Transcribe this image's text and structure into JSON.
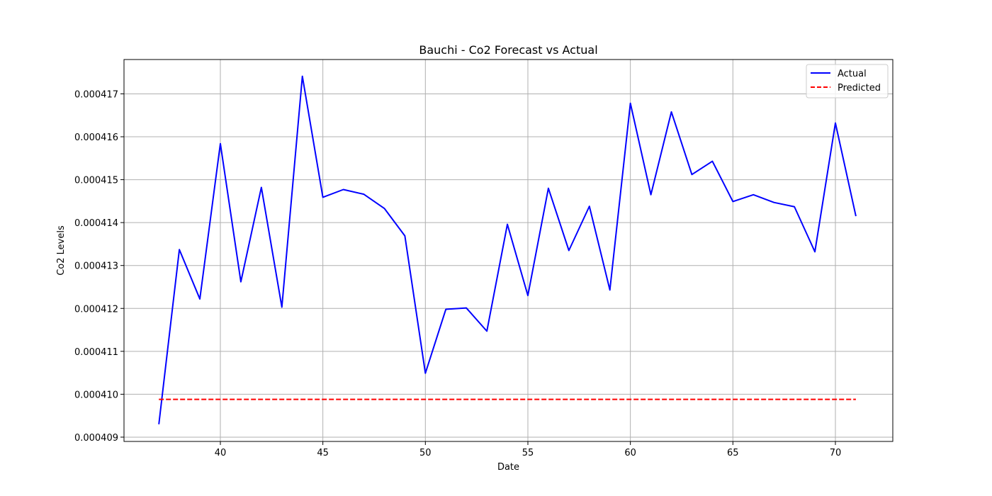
{
  "chart_data": {
    "type": "line",
    "title": "Bauchi - Co2 Forecast vs Actual",
    "xlabel": "Date",
    "ylabel": "Co2 Levels",
    "xlim": [
      35.3,
      72.8
    ],
    "ylim": [
      0.0004089,
      0.0004178
    ],
    "x_ticks": [
      40,
      45,
      50,
      55,
      60,
      65,
      70
    ],
    "x_tick_labels": [
      "40",
      "45",
      "50",
      "55",
      "60",
      "65",
      "70"
    ],
    "y_ticks": [
      0.000409,
      0.00041,
      0.000411,
      0.000412,
      0.000413,
      0.000414,
      0.000415,
      0.000416,
      0.000417
    ],
    "y_tick_labels": [
      "0.000409",
      "0.000410",
      "0.000411",
      "0.000412",
      "0.000413",
      "0.000414",
      "0.000415",
      "0.000416",
      "0.000417"
    ],
    "grid": true,
    "legend_position": "top-right",
    "x": [
      37,
      38,
      39,
      40,
      41,
      42,
      43,
      44,
      45,
      46,
      47,
      48,
      49,
      50,
      51,
      52,
      53,
      54,
      55,
      56,
      57,
      58,
      59,
      60,
      61,
      62,
      63,
      64,
      65,
      66,
      67,
      68,
      69,
      70,
      71
    ],
    "series": [
      {
        "name": "Actual",
        "color": "#0000ff",
        "style": "solid",
        "values": [
          0.0004093,
          0.00041337,
          0.00041222,
          0.00041584,
          0.00041262,
          0.00041482,
          0.00041203,
          0.00041741,
          0.00041459,
          0.00041477,
          0.00041466,
          0.00041433,
          0.00041369,
          0.00041049,
          0.00041198,
          0.00041201,
          0.00041147,
          0.00041396,
          0.0004123,
          0.0004148,
          0.00041335,
          0.00041438,
          0.00041243,
          0.00041678,
          0.00041465,
          0.00041658,
          0.00041512,
          0.00041543,
          0.00041449,
          0.00041465,
          0.00041447,
          0.00041437,
          0.00041332,
          0.00041632,
          0.00041415
        ]
      },
      {
        "name": "Predicted",
        "color": "#ff0000",
        "style": "dashed",
        "values": [
          0.00040988,
          0.00040988,
          0.00040988,
          0.00040988,
          0.00040988,
          0.00040988,
          0.00040988,
          0.00040988,
          0.00040988,
          0.00040988,
          0.00040988,
          0.00040988,
          0.00040988,
          0.00040988,
          0.00040988,
          0.00040988,
          0.00040988,
          0.00040988,
          0.00040988,
          0.00040988,
          0.00040988,
          0.00040988,
          0.00040988,
          0.00040988,
          0.00040988,
          0.00040988,
          0.00040988,
          0.00040988,
          0.00040988,
          0.00040988,
          0.00040988,
          0.00040988,
          0.00040988,
          0.00040988,
          0.00040988
        ]
      }
    ]
  }
}
